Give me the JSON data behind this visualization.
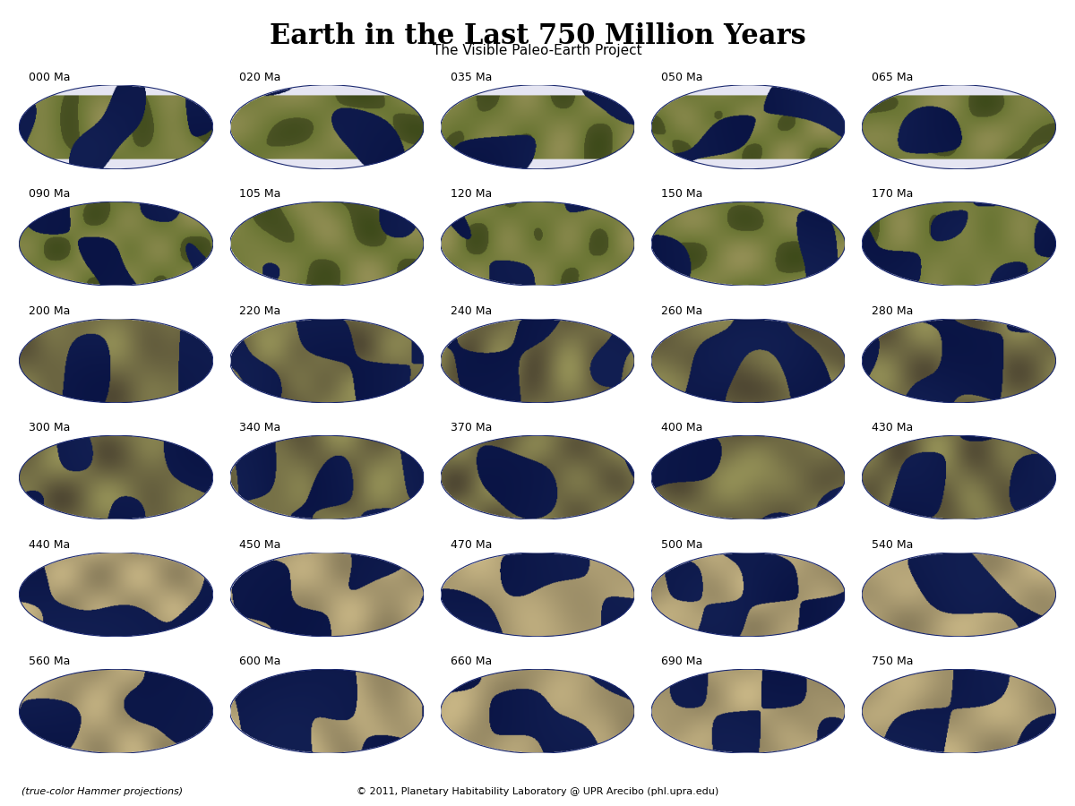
{
  "title": "Earth in the Last 750 Million Years",
  "subtitle": "The Visible Paleo-Earth Project",
  "footer_left": "(true-color Hammer projections)",
  "footer_right": "© 2011, Planetary Habitability Laboratory @ UPR Arecibo (phl.upra.edu)",
  "background_color": "#ffffff",
  "ocean_color": "#0a1545",
  "title_fontsize": 22,
  "subtitle_fontsize": 11,
  "label_fontsize": 9,
  "footer_fontsize": 8,
  "labels": [
    "000 Ma",
    "020 Ma",
    "035 Ma",
    "050 Ma",
    "065 Ma",
    "090 Ma",
    "105 Ma",
    "120 Ma",
    "150 Ma",
    "170 Ma",
    "200 Ma",
    "220 Ma",
    "240 Ma",
    "260 Ma",
    "280 Ma",
    "300 Ma",
    "340 Ma",
    "370 Ma",
    "400 Ma",
    "430 Ma",
    "440 Ma",
    "450 Ma",
    "470 Ma",
    "500 Ma",
    "540 Ma",
    "560 Ma",
    "600 Ma",
    "660 Ma",
    "690 Ma",
    "750 Ma"
  ],
  "n_cols": 5,
  "n_rows": 6,
  "time_values": [
    0,
    20,
    35,
    50,
    65,
    90,
    105,
    120,
    150,
    170,
    200,
    220,
    240,
    260,
    280,
    300,
    340,
    370,
    400,
    430,
    440,
    450,
    470,
    500,
    540,
    560,
    600,
    660,
    690,
    750
  ]
}
